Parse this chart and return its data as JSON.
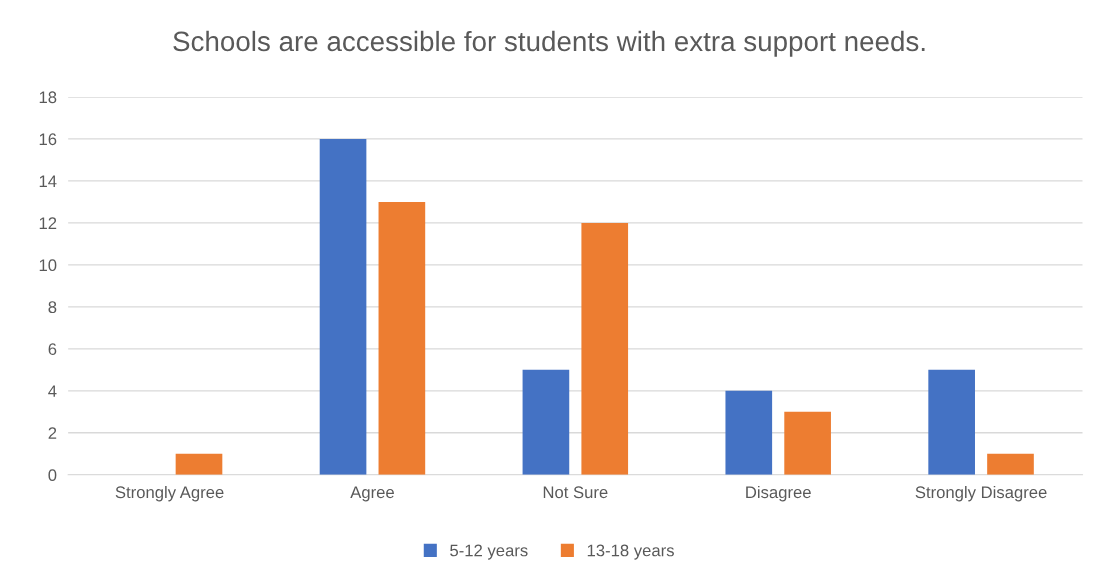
{
  "chart_data": {
    "type": "bar",
    "title": "Schools are accessible for students with extra support needs.",
    "categories": [
      "Strongly Agree",
      "Agree",
      "Not Sure",
      "Disagree",
      "Strongly Disagree"
    ],
    "series": [
      {
        "name": "5-12 years",
        "color": "#4472c4",
        "values": [
          0,
          16,
          5,
          4,
          5
        ]
      },
      {
        "name": "13-18 years",
        "color": "#ed7d31",
        "values": [
          1,
          13,
          12,
          3,
          1
        ]
      }
    ],
    "ylim": [
      0,
      18
    ],
    "yticks": [
      0,
      2,
      4,
      6,
      8,
      10,
      12,
      14,
      16,
      18
    ],
    "grid": "y",
    "legend": "bottom"
  }
}
